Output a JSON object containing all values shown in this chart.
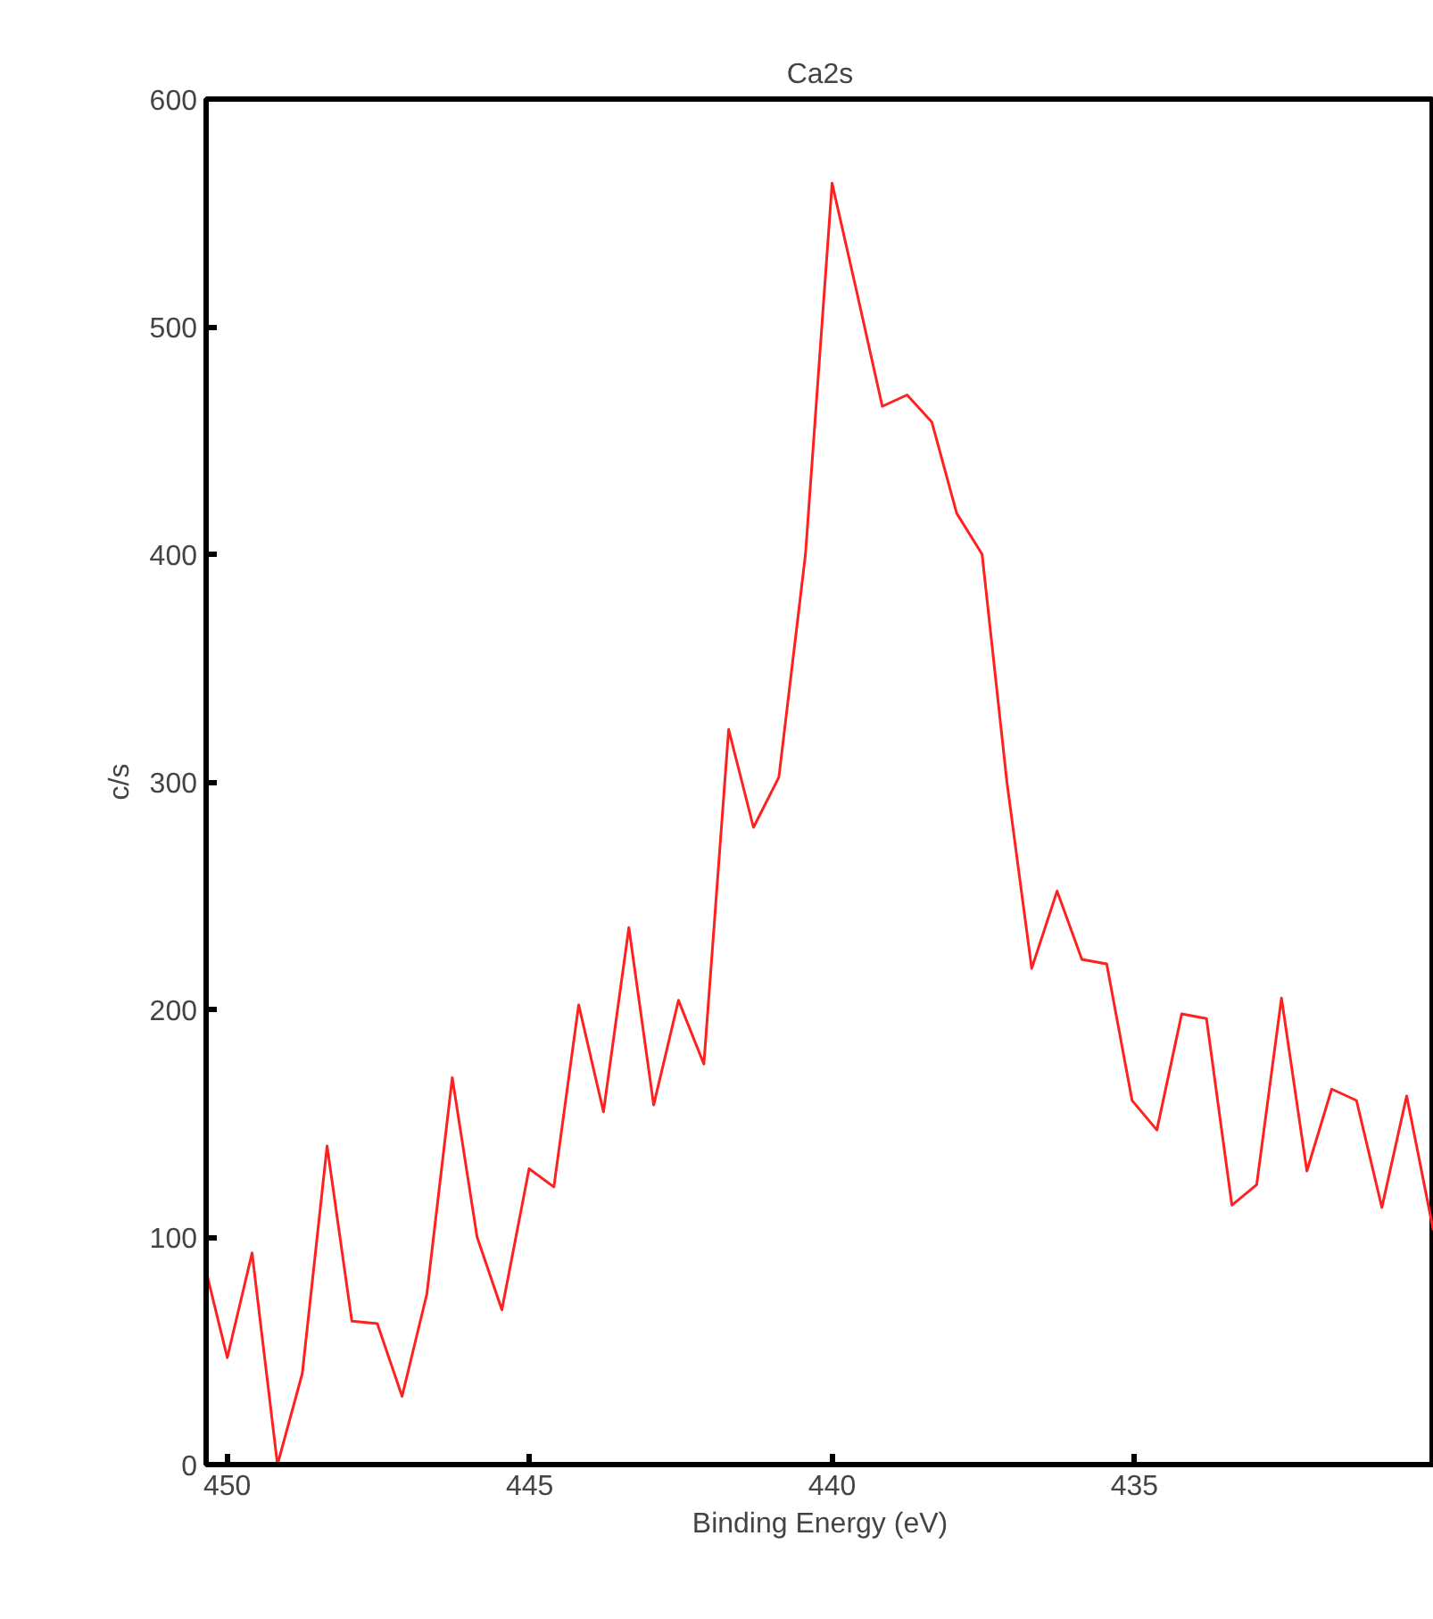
{
  "chart_data": {
    "type": "line",
    "title": "Ca2s",
    "xlabel": "Binding Energy (eV)",
    "ylabel": "c/s",
    "x": [
      450.35,
      450.0,
      449.59,
      449.17,
      448.76,
      448.35,
      447.94,
      447.52,
      447.11,
      446.7,
      446.28,
      445.87,
      445.46,
      445.01,
      444.6,
      444.19,
      443.78,
      443.36,
      442.95,
      442.54,
      442.12,
      441.71,
      441.3,
      440.88,
      440.44,
      440.0,
      439.59,
      439.17,
      438.76,
      438.35,
      437.94,
      437.52,
      437.11,
      436.7,
      436.28,
      435.87,
      435.46,
      435.04,
      434.63,
      434.22,
      433.81,
      433.39,
      432.98,
      432.57,
      432.15,
      431.74,
      431.33,
      430.91,
      430.5,
      430.06
    ],
    "series": [
      {
        "color": "#ff2020",
        "values": [
          85,
          47,
          93,
          0,
          40,
          140,
          63,
          62,
          30,
          75,
          170,
          100,
          68,
          130,
          122,
          202,
          155,
          236,
          158,
          204,
          176,
          323,
          280,
          302,
          400,
          563,
          515,
          465,
          470,
          458,
          418,
          400,
          300,
          218,
          252,
          222,
          220,
          160,
          147,
          198,
          196,
          114,
          123,
          205,
          129,
          165,
          160,
          113,
          162,
          103
        ]
      }
    ],
    "xlim": [
      450.35,
      430.05
    ],
    "ylim": [
      0,
      600
    ],
    "xticks": [
      450,
      445,
      440,
      435
    ],
    "yticks": [
      0,
      100,
      200,
      300,
      400,
      500,
      600
    ],
    "grid": false,
    "marker": "none",
    "line_style": "solid"
  }
}
